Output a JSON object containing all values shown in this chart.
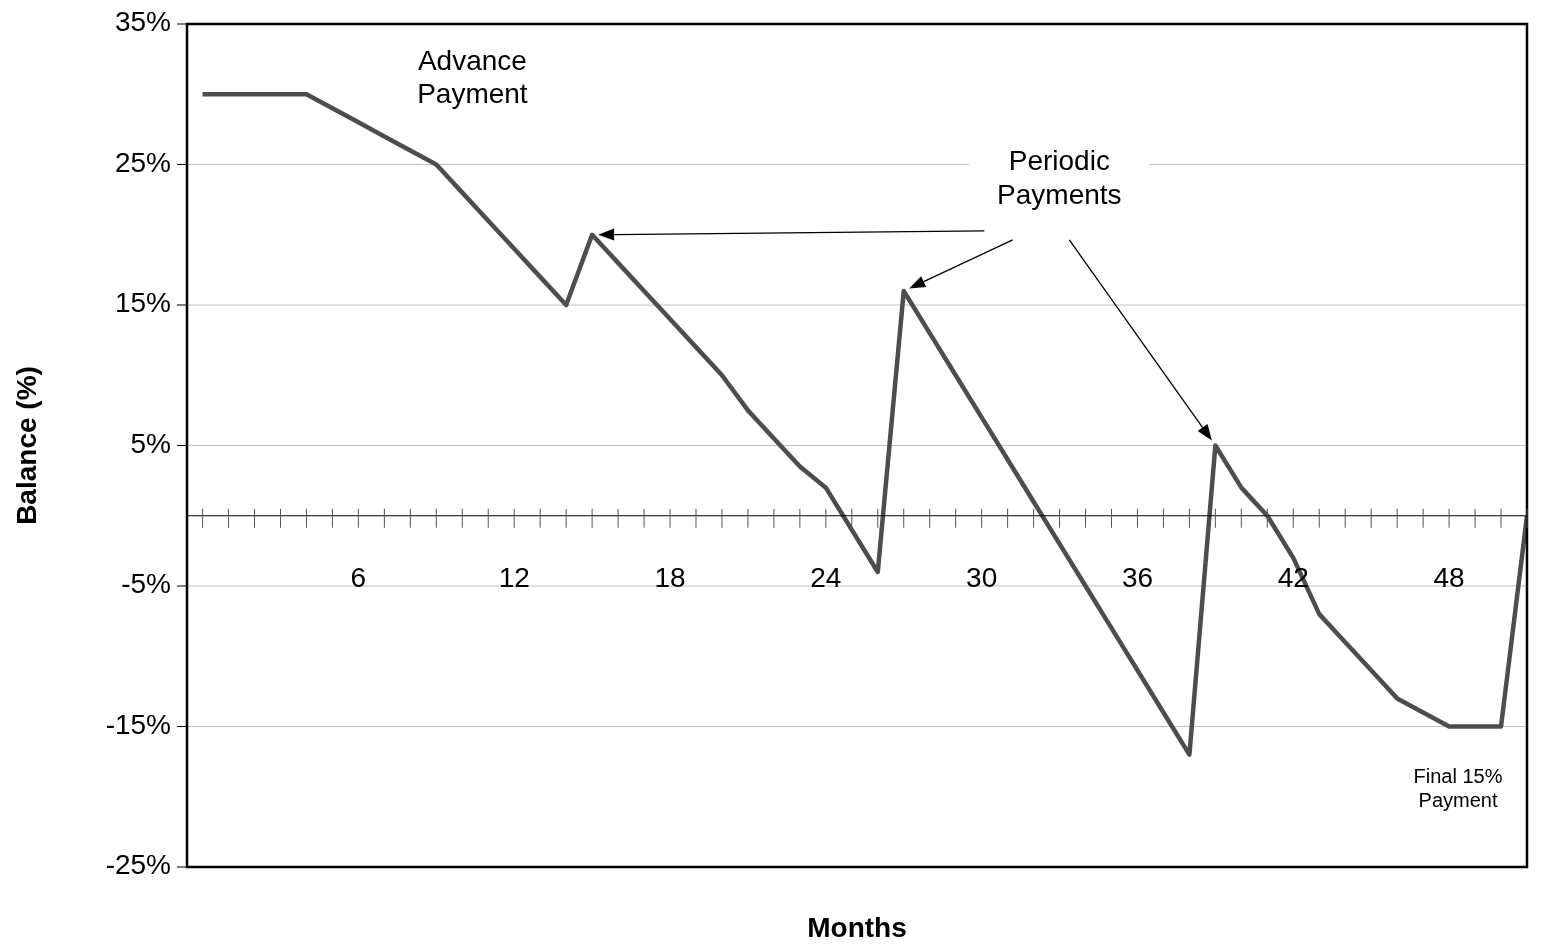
{
  "chart_data": {
    "type": "line",
    "xlabel": "Months",
    "ylabel": "Balance (%)",
    "x": [
      0,
      4,
      5,
      6,
      7,
      8,
      9,
      10,
      11,
      12,
      13,
      14,
      15,
      16,
      17,
      18,
      19,
      20,
      21,
      22,
      23,
      24,
      26,
      27,
      28,
      29,
      30,
      31,
      32,
      33,
      34,
      35,
      36,
      37,
      38,
      39,
      40,
      41,
      42,
      43,
      44,
      45,
      46,
      47,
      48,
      49,
      50,
      51
    ],
    "series": [
      {
        "color": "#4d4d4d",
        "values": [
          30,
          30,
          29,
          28,
          27,
          26,
          25,
          23,
          21,
          19,
          17,
          15,
          20,
          18,
          16,
          14,
          12,
          10,
          7.5,
          5.5,
          3.5,
          2,
          -4,
          16,
          13,
          10,
          7,
          4,
          1,
          -2,
          -5,
          -8,
          -11,
          -14,
          -17,
          5,
          2,
          0,
          -3,
          -7,
          -9,
          -11,
          -13,
          -14,
          -15,
          -15,
          -15,
          0
        ]
      }
    ],
    "xlim": [
      -0.6,
      51
    ],
    "xticks": [
      6,
      12,
      18,
      24,
      30,
      36,
      42,
      48
    ],
    "ylim": [
      -25,
      35
    ],
    "yticks": [
      {
        "value": -25,
        "label": "-25%"
      },
      {
        "value": -15,
        "label": "-15%"
      },
      {
        "value": -5,
        "label": "-5%"
      },
      {
        "value": 5,
        "label": "5%"
      },
      {
        "value": 15,
        "label": "15%"
      },
      {
        "value": 25,
        "label": "25%"
      },
      {
        "value": 35,
        "label": "35%"
      }
    ],
    "grid": "y",
    "marker": "none",
    "line_style": "solid",
    "legend": false,
    "annotations": [
      "Advance Payment",
      "Periodic Payments",
      {
        "text": "Final 15% Payment",
        "x": 49,
        "y": -15
      }
    ]
  }
}
